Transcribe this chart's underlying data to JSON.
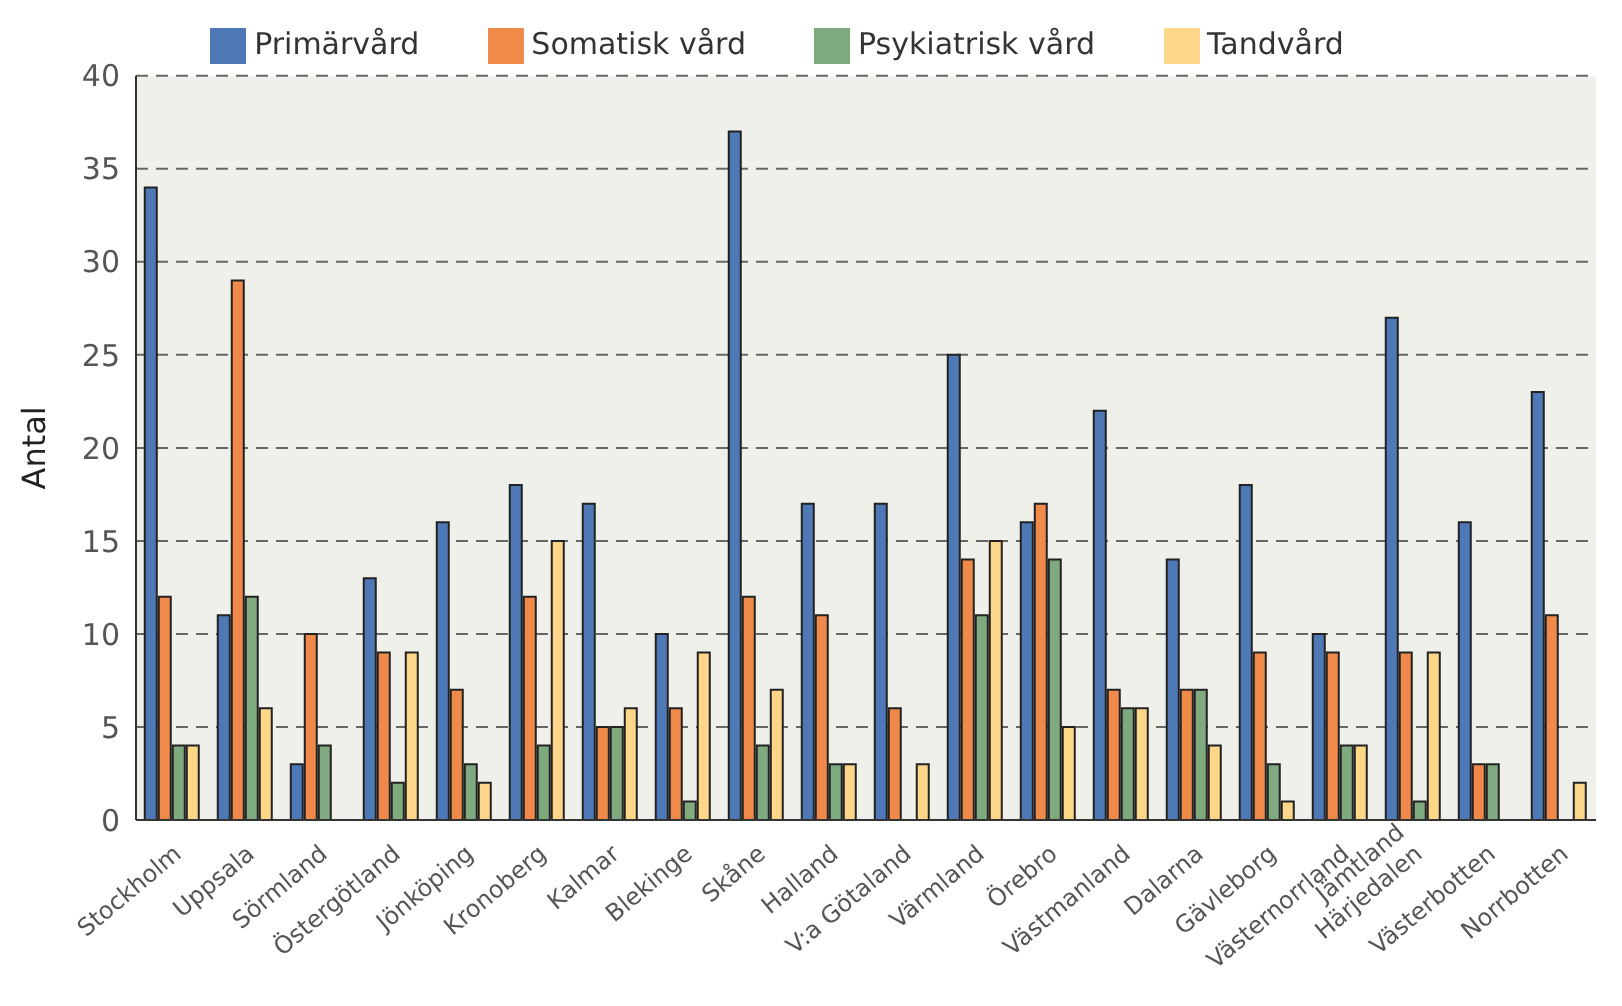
{
  "chart_data": {
    "type": "bar",
    "ylabel": "Antal",
    "categories": [
      "Stockholm",
      "Uppsala",
      "Sörmland",
      "Östergötland",
      "Jönköping",
      "Kronoberg",
      "Kalmar",
      "Blekinge",
      "Skåne",
      "Halland",
      "V:a Götaland",
      "Värmland",
      "Örebro",
      "Västmanland",
      "Dalarna",
      "Gävleborg",
      "Västernorrland",
      "Jämtland\nHärjedalen",
      "Västerbotten",
      "Norrbotten"
    ],
    "series": [
      {
        "name": "Primärvård",
        "color": "#4f79b6",
        "values": [
          34,
          11,
          3,
          13,
          16,
          18,
          17,
          10,
          37,
          17,
          17,
          25,
          16,
          22,
          14,
          18,
          10,
          27,
          16,
          23
        ]
      },
      {
        "name": "Somatisk vård",
        "color": "#f08a4b",
        "values": [
          12,
          29,
          10,
          9,
          7,
          12,
          5,
          6,
          12,
          11,
          6,
          14,
          17,
          7,
          7,
          9,
          9,
          9,
          3,
          11
        ]
      },
      {
        "name": "Psykiatrisk vård",
        "color": "#7faa80",
        "values": [
          4,
          12,
          4,
          2,
          3,
          4,
          5,
          1,
          4,
          3,
          0,
          11,
          14,
          6,
          7,
          3,
          4,
          1,
          3,
          0
        ]
      },
      {
        "name": "Tandvård",
        "color": "#fdd68a",
        "values": [
          4,
          6,
          0,
          9,
          2,
          15,
          6,
          9,
          7,
          3,
          3,
          15,
          5,
          6,
          4,
          1,
          4,
          9,
          0,
          2
        ]
      }
    ],
    "ylim": [
      0,
      40
    ],
    "yticks": [
      0,
      5,
      10,
      15,
      20,
      25,
      30,
      35,
      40
    ],
    "grid": "y",
    "legend": "top"
  }
}
